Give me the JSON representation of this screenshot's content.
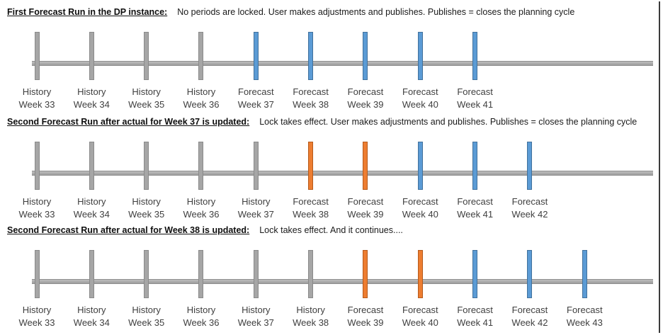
{
  "state_colors": {
    "history": {
      "fill": "#A6A6A6",
      "border": "#8a8a8a"
    },
    "forecast": {
      "fill": "#5B9BD5",
      "border": "#41719C"
    },
    "locked": {
      "fill": "#ED7D31",
      "border": "#b55a1b"
    }
  },
  "sections": [
    {
      "title": "First Forecast Run in the DP instance:",
      "description": "No periods are locked. User makes adjustments and publishes. Publishes = closes the planning cycle",
      "periods": [
        {
          "label": "History",
          "week": "Week 33",
          "state": "history"
        },
        {
          "label": "History",
          "week": "Week 34",
          "state": "history"
        },
        {
          "label": "History",
          "week": "Week 35",
          "state": "history"
        },
        {
          "label": "History",
          "week": "Week 36",
          "state": "history"
        },
        {
          "label": "Forecast",
          "week": "Week 37",
          "state": "forecast"
        },
        {
          "label": "Forecast",
          "week": "Week 38",
          "state": "forecast"
        },
        {
          "label": "Forecast",
          "week": "Week 39",
          "state": "forecast"
        },
        {
          "label": "Forecast",
          "week": "Week 40",
          "state": "forecast"
        },
        {
          "label": "Forecast",
          "week": "Week 41",
          "state": "forecast"
        }
      ]
    },
    {
      "title": "Second Forecast Run after actual for Week 37 is updated:",
      "description": "Lock takes effect. User makes adjustments and publishes. Publishes = closes the planning cycle",
      "periods": [
        {
          "label": "History",
          "week": "Week 33",
          "state": "history"
        },
        {
          "label": "History",
          "week": "Week 34",
          "state": "history"
        },
        {
          "label": "History",
          "week": "Week 35",
          "state": "history"
        },
        {
          "label": "History",
          "week": "Week 36",
          "state": "history"
        },
        {
          "label": "History",
          "week": "Week 37",
          "state": "history"
        },
        {
          "label": "Forecast",
          "week": "Week 38",
          "state": "locked"
        },
        {
          "label": "Forecast",
          "week": "Week 39",
          "state": "locked"
        },
        {
          "label": "Forecast",
          "week": "Week 40",
          "state": "forecast"
        },
        {
          "label": "Forecast",
          "week": "Week 41",
          "state": "forecast"
        },
        {
          "label": "Forecast",
          "week": "Week 42",
          "state": "forecast"
        }
      ]
    },
    {
      "title": "Second Forecast Run after actual for Week 38 is updated:",
      "description": "Lock takes effect. And it continues....",
      "periods": [
        {
          "label": "History",
          "week": "Week 33",
          "state": "history"
        },
        {
          "label": "History",
          "week": "Week 34",
          "state": "history"
        },
        {
          "label": "History",
          "week": "Week 35",
          "state": "history"
        },
        {
          "label": "History",
          "week": "Week 36",
          "state": "history"
        },
        {
          "label": "History",
          "week": "Week 37",
          "state": "history"
        },
        {
          "label": "History",
          "week": "Week 38",
          "state": "history"
        },
        {
          "label": "Forecast",
          "week": "Week 39",
          "state": "locked"
        },
        {
          "label": "Forecast",
          "week": "Week 40",
          "state": "locked"
        },
        {
          "label": "Forecast",
          "week": "Week 41",
          "state": "forecast"
        },
        {
          "label": "Forecast",
          "week": "Week 42",
          "state": "forecast"
        },
        {
          "label": "Forecast",
          "week": "Week 43",
          "state": "forecast"
        }
      ]
    }
  ]
}
